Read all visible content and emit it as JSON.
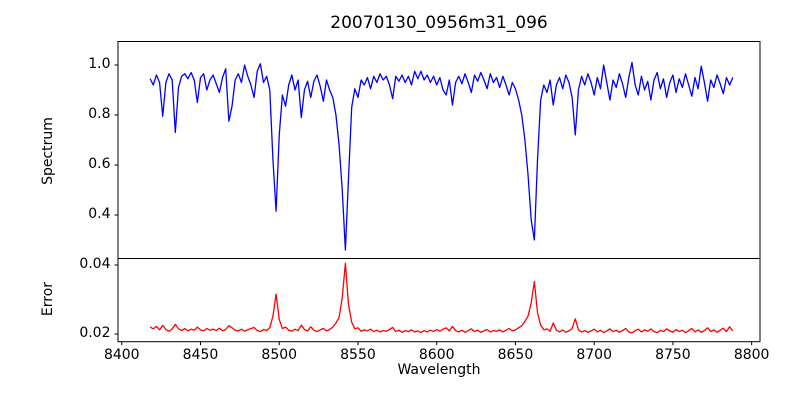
{
  "figure": {
    "title": "20070130_0956m31_096",
    "background": "#ffffff"
  },
  "chart_data": {
    "type": "line",
    "title": "20070130_0956m31_096",
    "xlabel": "Wavelength",
    "grid": false,
    "legend": "none",
    "xlim": [
      8397.6,
      8805.3
    ],
    "xticks": {
      "values": [
        8400,
        8450,
        8500,
        8550,
        8600,
        8650,
        8700,
        8750,
        8800
      ],
      "labels": [
        "8400",
        "8450",
        "8500",
        "8550",
        "8600",
        "8650",
        "8700",
        "8750",
        "8800"
      ]
    },
    "x": [
      8418,
      8420,
      8422,
      8424,
      8426,
      8428,
      8430,
      8432,
      8434,
      8436,
      8438,
      8440,
      8442,
      8444,
      8446,
      8448,
      8450,
      8452,
      8454,
      8456,
      8458,
      8460,
      8462,
      8464,
      8466,
      8468,
      8470,
      8472,
      8474,
      8476,
      8478,
      8480,
      8482,
      8484,
      8486,
      8488,
      8490,
      8492,
      8494,
      8496,
      8498,
      8500,
      8502,
      8504,
      8506,
      8508,
      8510,
      8512,
      8514,
      8516,
      8518,
      8520,
      8522,
      8524,
      8526,
      8528,
      8530,
      8532,
      8534,
      8536,
      8538,
      8540,
      8542,
      8544,
      8546,
      8548,
      8550,
      8552,
      8554,
      8556,
      8558,
      8560,
      8562,
      8564,
      8566,
      8568,
      8570,
      8572,
      8574,
      8576,
      8578,
      8580,
      8582,
      8584,
      8586,
      8588,
      8590,
      8592,
      8594,
      8596,
      8598,
      8600,
      8602,
      8604,
      8606,
      8608,
      8610,
      8612,
      8614,
      8616,
      8618,
      8620,
      8622,
      8624,
      8626,
      8628,
      8630,
      8632,
      8634,
      8636,
      8638,
      8640,
      8642,
      8644,
      8646,
      8648,
      8650,
      8652,
      8654,
      8656,
      8658,
      8660,
      8662,
      8664,
      8666,
      8668,
      8670,
      8672,
      8674,
      8676,
      8678,
      8680,
      8682,
      8684,
      8686,
      8688,
      8690,
      8692,
      8694,
      8696,
      8698,
      8700,
      8702,
      8704,
      8706,
      8708,
      8710,
      8712,
      8714,
      8716,
      8718,
      8720,
      8722,
      8724,
      8726,
      8728,
      8730,
      8732,
      8734,
      8736,
      8738,
      8740,
      8742,
      8744,
      8746,
      8748,
      8750,
      8752,
      8754,
      8756,
      8758,
      8760,
      8762,
      8764,
      8766,
      8768,
      8770,
      8772,
      8774,
      8776,
      8778,
      8780,
      8782,
      8784,
      8786,
      8788
    ],
    "panels": [
      {
        "name": "spectrum",
        "ylabel": "Spectrum",
        "color": "#0000ff",
        "ylim": [
          0.226,
          1.094
        ],
        "yticks": {
          "values": [
            1.0,
            0.8,
            0.6,
            0.4
          ],
          "labels": [
            "1.0",
            "0.8",
            "0.6",
            "0.4"
          ]
        },
        "absorption_line_centers": [
          8498,
          8542,
          8662,
          8688
        ],
        "values": [
          0.945,
          0.92,
          0.96,
          0.93,
          0.795,
          0.93,
          0.965,
          0.94,
          0.73,
          0.91,
          0.955,
          0.965,
          0.945,
          0.97,
          0.94,
          0.85,
          0.95,
          0.965,
          0.9,
          0.94,
          0.96,
          0.925,
          0.89,
          0.95,
          0.985,
          0.775,
          0.835,
          0.94,
          0.965,
          0.93,
          1.0,
          0.955,
          0.92,
          0.87,
          0.975,
          1.005,
          0.93,
          0.955,
          0.9,
          0.62,
          0.415,
          0.72,
          0.88,
          0.835,
          0.92,
          0.96,
          0.9,
          0.94,
          0.79,
          0.9,
          0.935,
          0.87,
          0.935,
          0.96,
          0.915,
          0.855,
          0.94,
          0.9,
          0.87,
          0.8,
          0.68,
          0.5,
          0.26,
          0.55,
          0.83,
          0.905,
          0.87,
          0.94,
          0.92,
          0.95,
          0.905,
          0.955,
          0.93,
          0.965,
          0.94,
          0.955,
          0.92,
          0.865,
          0.955,
          0.935,
          0.96,
          0.93,
          0.955,
          0.92,
          0.975,
          0.945,
          0.975,
          0.94,
          0.96,
          0.93,
          0.955,
          0.92,
          0.95,
          0.9,
          0.88,
          0.94,
          0.84,
          0.93,
          0.955,
          0.925,
          0.965,
          0.93,
          0.89,
          0.96,
          0.935,
          0.97,
          0.94,
          0.905,
          0.965,
          0.93,
          0.95,
          0.91,
          0.955,
          0.92,
          0.88,
          0.93,
          0.905,
          0.86,
          0.8,
          0.7,
          0.56,
          0.38,
          0.3,
          0.62,
          0.86,
          0.92,
          0.89,
          0.94,
          0.84,
          0.92,
          0.95,
          0.905,
          0.96,
          0.93,
          0.87,
          0.72,
          0.9,
          0.955,
          0.92,
          0.965,
          0.93,
          0.88,
          0.95,
          0.905,
          1.0,
          0.93,
          0.86,
          0.94,
          0.91,
          0.965,
          0.925,
          0.87,
          0.95,
          1.01,
          0.92,
          0.88,
          0.955,
          0.9,
          0.935,
          0.86,
          0.94,
          0.97,
          0.905,
          0.945,
          0.87,
          0.93,
          0.96,
          0.89,
          0.945,
          0.91,
          0.965,
          0.92,
          0.875,
          0.95,
          0.905,
          0.995,
          0.93,
          0.855,
          0.94,
          0.91,
          0.96,
          0.925,
          0.885,
          0.95,
          0.92,
          0.95
        ]
      },
      {
        "name": "error",
        "ylabel": "Error",
        "color": "#ff0000",
        "ylim": [
          0.01777,
          0.04188
        ],
        "yticks": {
          "values": [
            0.04,
            0.02
          ],
          "labels": [
            "0.04",
            "0.02"
          ]
        },
        "peak_centers": [
          8498,
          8542,
          8662
        ],
        "values": [
          0.022,
          0.0215,
          0.0222,
          0.0212,
          0.0225,
          0.0213,
          0.0208,
          0.0215,
          0.0228,
          0.0215,
          0.021,
          0.0216,
          0.0209,
          0.0214,
          0.0211,
          0.022,
          0.0212,
          0.0209,
          0.0216,
          0.0211,
          0.0214,
          0.021,
          0.0217,
          0.0209,
          0.0213,
          0.0224,
          0.0218,
          0.0211,
          0.0209,
          0.0214,
          0.0208,
          0.0212,
          0.0216,
          0.0219,
          0.021,
          0.0207,
          0.0213,
          0.021,
          0.0218,
          0.0252,
          0.0315,
          0.0242,
          0.0216,
          0.022,
          0.0211,
          0.0208,
          0.0214,
          0.021,
          0.0226,
          0.0213,
          0.0209,
          0.0221,
          0.0211,
          0.0207,
          0.0212,
          0.0216,
          0.0209,
          0.0213,
          0.022,
          0.0232,
          0.0248,
          0.0305,
          0.0405,
          0.0285,
          0.0234,
          0.0215,
          0.0218,
          0.0208,
          0.0212,
          0.0209,
          0.0214,
          0.0207,
          0.0211,
          0.0206,
          0.021,
          0.0208,
          0.0213,
          0.0219,
          0.0207,
          0.0211,
          0.0205,
          0.021,
          0.0207,
          0.0212,
          0.0206,
          0.0209,
          0.0204,
          0.021,
          0.0206,
          0.0211,
          0.0207,
          0.0213,
          0.0208,
          0.0214,
          0.0218,
          0.0209,
          0.0222,
          0.021,
          0.0206,
          0.0211,
          0.0205,
          0.021,
          0.0215,
          0.0207,
          0.0211,
          0.0205,
          0.0209,
          0.0213,
          0.0206,
          0.021,
          0.0208,
          0.0212,
          0.0206,
          0.0211,
          0.0216,
          0.0209,
          0.0212,
          0.0218,
          0.0224,
          0.0236,
          0.0252,
          0.029,
          0.0352,
          0.0262,
          0.0226,
          0.0212,
          0.0215,
          0.0208,
          0.0232,
          0.0211,
          0.0206,
          0.0212,
          0.0205,
          0.0209,
          0.0216,
          0.0244,
          0.0212,
          0.0206,
          0.021,
          0.0205,
          0.0209,
          0.0214,
          0.0206,
          0.0211,
          0.0204,
          0.0209,
          0.0215,
          0.0207,
          0.0211,
          0.0205,
          0.021,
          0.0216,
          0.0206,
          0.0203,
          0.021,
          0.0214,
          0.0206,
          0.0212,
          0.0208,
          0.0215,
          0.0207,
          0.0204,
          0.0211,
          0.0207,
          0.0215,
          0.0209,
          0.0205,
          0.0213,
          0.0207,
          0.0211,
          0.0204,
          0.021,
          0.0216,
          0.0206,
          0.0212,
          0.0205,
          0.021,
          0.0218,
          0.0207,
          0.0212,
          0.0205,
          0.0211,
          0.0217,
          0.0207,
          0.0221,
          0.0209
        ]
      }
    ],
    "colors": {
      "spectrum_line": "#0000ff",
      "error_line": "#ff0000",
      "axis": "#000000"
    }
  }
}
